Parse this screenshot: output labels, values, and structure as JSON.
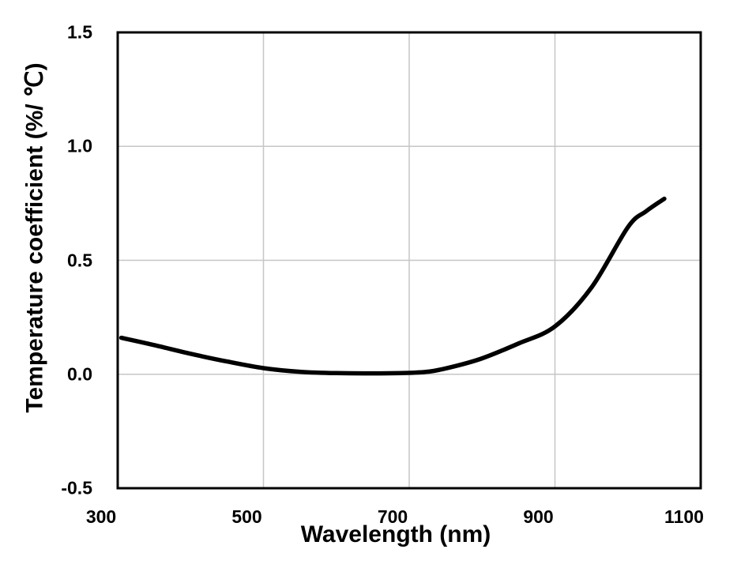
{
  "figure": {
    "background": "#ffffff",
    "text_color": "#000000"
  },
  "chart_data": {
    "type": "line",
    "title": "",
    "xlabel": "Wavelength (nm)",
    "ylabel": "Temperature coefficient (%/ ℃)",
    "xlim": [
      300,
      1100
    ],
    "ylim": [
      -0.5,
      1.5
    ],
    "grid": true,
    "legend": "none",
    "xticks": [
      {
        "value": 300,
        "label": "300"
      },
      {
        "value": 500,
        "label": "500"
      },
      {
        "value": 700,
        "label": "700"
      },
      {
        "value": 900,
        "label": "900"
      },
      {
        "value": 1100,
        "label": "1100"
      }
    ],
    "yticks": [
      {
        "value": -0.5,
        "label": "-0.5"
      },
      {
        "value": 0,
        "label": "0.0"
      },
      {
        "value": 0.5,
        "label": "0.5"
      },
      {
        "value": 1,
        "label": "1.0"
      },
      {
        "value": 1.5,
        "label": "1.5"
      }
    ],
    "gridlines": {
      "x_values": [
        500,
        700,
        900
      ],
      "y_values": [
        0,
        0.5,
        1
      ],
      "color": "#c6c6c6",
      "width": 1.5
    },
    "frame_color": "#000000",
    "frame_width": 3,
    "series": [
      {
        "name": "temperature coefficient",
        "color": "#000000",
        "line_width": 5.5,
        "points": [
          [
            305,
            0.16
          ],
          [
            350,
            0.128
          ],
          [
            400,
            0.09
          ],
          [
            450,
            0.056
          ],
          [
            500,
            0.027
          ],
          [
            550,
            0.011
          ],
          [
            600,
            0.005
          ],
          [
            650,
            0.004
          ],
          [
            700,
            0.006
          ],
          [
            730,
            0.013
          ],
          [
            760,
            0.033
          ],
          [
            800,
            0.07
          ],
          [
            850,
            0.135
          ],
          [
            900,
            0.21
          ],
          [
            950,
            0.38
          ],
          [
            1000,
            0.645
          ],
          [
            1025,
            0.715
          ],
          [
            1050,
            0.77
          ]
        ]
      }
    ]
  }
}
